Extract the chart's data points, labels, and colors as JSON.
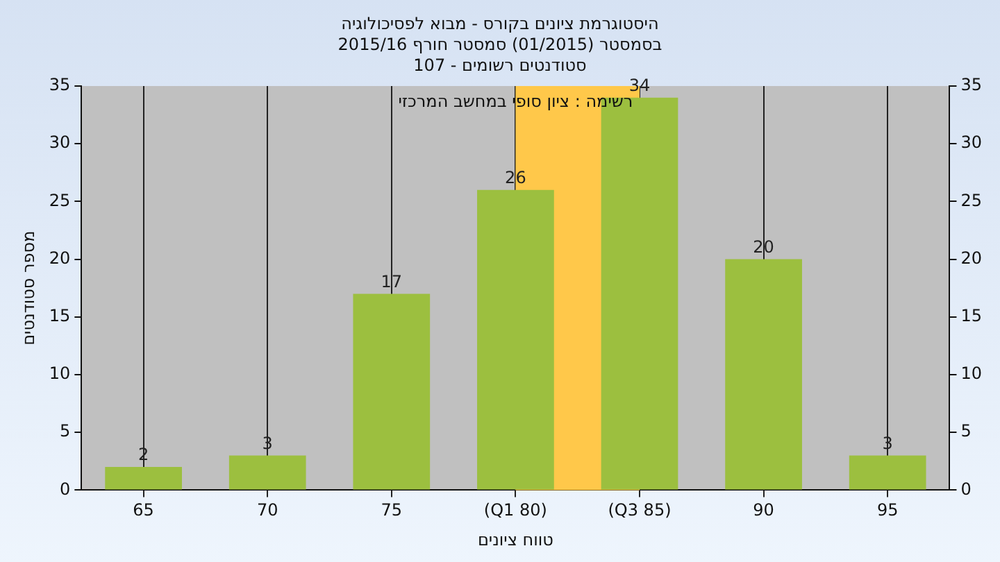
{
  "chart_data": {
    "type": "bar",
    "title": "היסטוגרמת ציונים בקורס - מבוא לפסיכולוגיה",
    "subtitle": "בסמסטר  (01/2015)  סמסטר חורף 2015/16\nסטודנטים רשומים - 107",
    "xlabel": "טווח ציונים",
    "ylabel": "מספר סטודנטים",
    "annotations": [
      "רשימה : ציון סופי במחשב המרכזי"
    ],
    "categories": [
      "65",
      "70",
      "75",
      "(Q1 80)",
      "(Q3 85)",
      "90",
      "95"
    ],
    "values": [
      2,
      3,
      17,
      26,
      34,
      20,
      3
    ],
    "color": "#9cbf3f",
    "ylim": [
      0,
      35
    ],
    "yticks": [
      0,
      5,
      10,
      15,
      20,
      25,
      30,
      35
    ],
    "y2lim": [
      0,
      35
    ],
    "y2ticks": [
      0,
      5,
      10,
      15,
      20,
      25,
      30,
      35
    ],
    "bands": [
      {
        "axis": "x",
        "from": "(Q1 80)",
        "to": "(Q3 85)",
        "color": "#ffc84a"
      }
    ],
    "data_labels": true,
    "grid": "x",
    "legend": false
  }
}
